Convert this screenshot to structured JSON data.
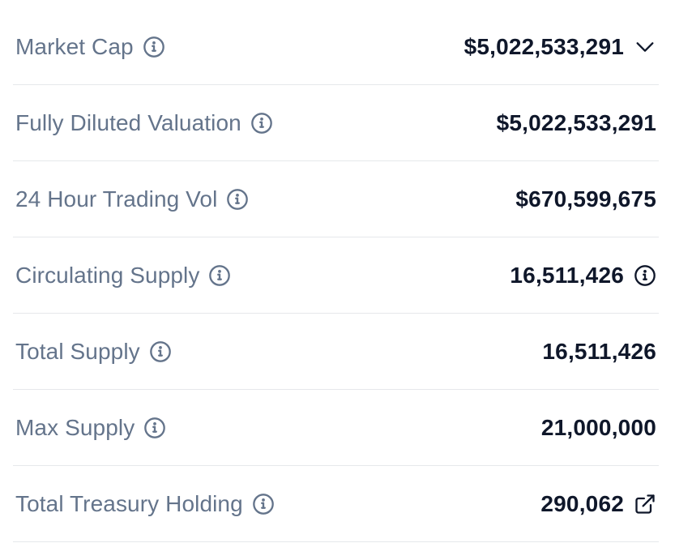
{
  "stats": {
    "rows": [
      {
        "label": "Market Cap",
        "value": "$5,022,533,291",
        "label_icon": "info-icon",
        "value_icon": "chevron-down-icon"
      },
      {
        "label": "Fully Diluted Valuation",
        "value": "$5,022,533,291",
        "label_icon": "info-icon",
        "value_icon": null
      },
      {
        "label": "24 Hour Trading Vol",
        "value": "$670,599,675",
        "label_icon": "info-icon",
        "value_icon": null
      },
      {
        "label": "Circulating Supply",
        "value": "16,511,426",
        "label_icon": "info-icon",
        "value_icon": "info-icon"
      },
      {
        "label": "Total Supply",
        "value": "16,511,426",
        "label_icon": "info-icon",
        "value_icon": null
      },
      {
        "label": "Max Supply",
        "value": "21,000,000",
        "label_icon": "info-icon",
        "value_icon": null
      },
      {
        "label": "Total Treasury Holding",
        "value": "290,062",
        "label_icon": "info-icon",
        "value_icon": "external-link-icon"
      }
    ]
  },
  "colors": {
    "label": "#64748b",
    "value": "#0f172a",
    "divider": "#e6e8eb",
    "icon_muted": "#64748b",
    "icon_dark": "#0f172a"
  }
}
